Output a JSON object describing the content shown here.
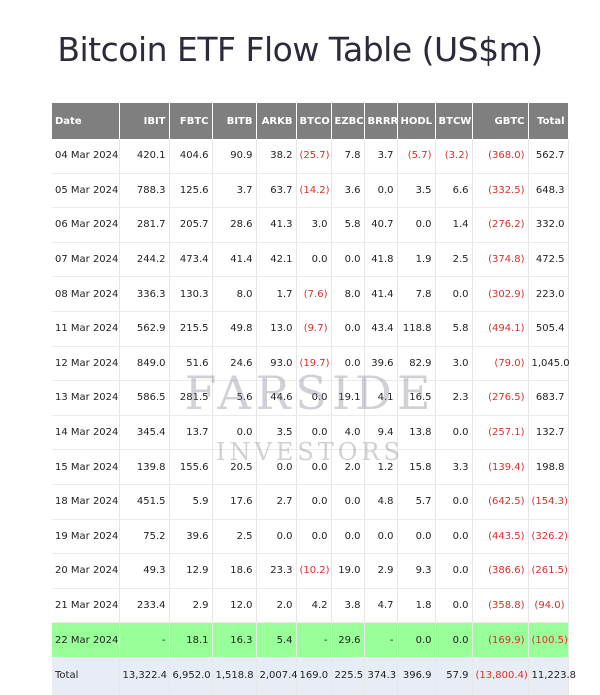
{
  "page": {
    "title": "Bitcoin ETF Flow Table (US$m)"
  },
  "table": {
    "headers": [
      "Date",
      "IBIT",
      "FBTC",
      "BITB",
      "ARKB",
      "BTCO",
      "EZBC",
      "BRRR",
      "HODL",
      "BTCW",
      "GBTC",
      "Total"
    ],
    "rows": [
      [
        "04 Mar 2024",
        "420.1",
        "404.6",
        "90.9",
        "38.2",
        "(25.7)",
        "7.8",
        "3.7",
        "(5.7)",
        "(3.2)",
        "(368.0)",
        "562.7"
      ],
      [
        "05 Mar 2024",
        "788.3",
        "125.6",
        "3.7",
        "63.7",
        "(14.2)",
        "3.6",
        "0.0",
        "3.5",
        "6.6",
        "(332.5)",
        "648.3"
      ],
      [
        "06 Mar 2024",
        "281.7",
        "205.7",
        "28.6",
        "41.3",
        "3.0",
        "5.8",
        "40.7",
        "0.0",
        "1.4",
        "(276.2)",
        "332.0"
      ],
      [
        "07 Mar 2024",
        "244.2",
        "473.4",
        "41.4",
        "42.1",
        "0.0",
        "0.0",
        "41.8",
        "1.9",
        "2.5",
        "(374.8)",
        "472.5"
      ],
      [
        "08 Mar 2024",
        "336.3",
        "130.3",
        "8.0",
        "1.7",
        "(7.6)",
        "8.0",
        "41.4",
        "7.8",
        "0.0",
        "(302.9)",
        "223.0"
      ],
      [
        "11 Mar 2024",
        "562.9",
        "215.5",
        "49.8",
        "13.0",
        "(9.7)",
        "0.0",
        "43.4",
        "118.8",
        "5.8",
        "(494.1)",
        "505.4"
      ],
      [
        "12 Mar 2024",
        "849.0",
        "51.6",
        "24.6",
        "93.0",
        "(19.7)",
        "0.0",
        "39.6",
        "82.9",
        "3.0",
        "(79.0)",
        "1,045.0"
      ],
      [
        "13 Mar 2024",
        "586.5",
        "281.5",
        "5.6",
        "44.6",
        "0.0",
        "19.1",
        "4.1",
        "16.5",
        "2.3",
        "(276.5)",
        "683.7"
      ],
      [
        "14 Mar 2024",
        "345.4",
        "13.7",
        "0.0",
        "3.5",
        "0.0",
        "4.0",
        "9.4",
        "13.8",
        "0.0",
        "(257.1)",
        "132.7"
      ],
      [
        "15 Mar 2024",
        "139.8",
        "155.6",
        "20.5",
        "0.0",
        "0.0",
        "2.0",
        "1.2",
        "15.8",
        "3.3",
        "(139.4)",
        "198.8"
      ],
      [
        "18 Mar 2024",
        "451.5",
        "5.9",
        "17.6",
        "2.7",
        "0.0",
        "0.0",
        "4.8",
        "5.7",
        "0.0",
        "(642.5)",
        "(154.3)"
      ],
      [
        "19 Mar 2024",
        "75.2",
        "39.6",
        "2.5",
        "0.0",
        "0.0",
        "0.0",
        "0.0",
        "0.0",
        "0.0",
        "(443.5)",
        "(326.2)"
      ],
      [
        "20 Mar 2024",
        "49.3",
        "12.9",
        "18.6",
        "23.3",
        "(10.2)",
        "19.0",
        "2.9",
        "9.3",
        "0.0",
        "(386.6)",
        "(261.5)"
      ],
      [
        "21 Mar 2024",
        "233.4",
        "2.9",
        "12.0",
        "2.0",
        "4.2",
        "3.8",
        "4.7",
        "1.8",
        "0.0",
        "(358.8)",
        "(94.0)"
      ],
      [
        "22 Mar 2024",
        "-",
        "18.1",
        "16.3",
        "5.4",
        "-",
        "29.6",
        "-",
        "0.0",
        "0.0",
        "(169.9)",
        "(100.5)"
      ]
    ],
    "total": [
      "Total",
      "13,322.4",
      "6,952.0",
      "1,518.8",
      "2,007.4",
      "169.0",
      "225.5",
      "374.3",
      "396.9",
      "57.9",
      "(13,800.4)",
      "11,223.8"
    ],
    "highlight_row_index": 14,
    "colors": {
      "header_bg": "#7f7f7f",
      "highlight_bg": "#99ff99",
      "total_bg": "#e8edf5",
      "negative": "#d9302a"
    }
  },
  "watermark": {
    "line1": "FARSIDE",
    "line2": "INVESTORS"
  }
}
